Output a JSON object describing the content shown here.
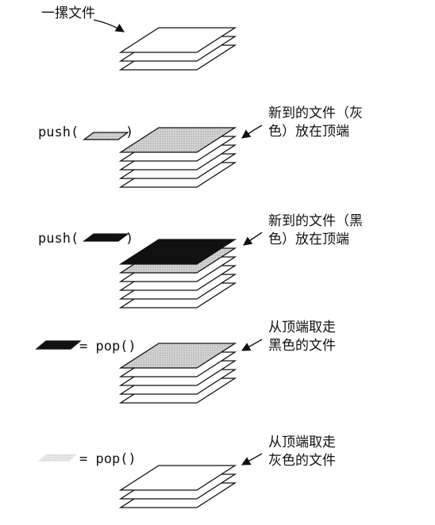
{
  "colors": {
    "white": "#ffffff",
    "gray": "#cccccc",
    "black": "#111111",
    "faint": "#e2e2e2"
  },
  "labels": {
    "stack": "一摞文件",
    "gray_arrive_1": "新到的文件（灰",
    "gray_arrive_2": "色）放在顶端",
    "black_arrive_1": "新到的文件（黑",
    "black_arrive_2": "色）放在顶端",
    "take_black_1": "从顶端取走",
    "take_black_2": "黑色的文件",
    "take_gray_1": "从顶端取走",
    "take_gray_2": "灰色的文件"
  },
  "code": {
    "push_open": "push(",
    "push_close": ")",
    "assign_pop": "= pop()"
  },
  "stacks": [
    {
      "sheets": [
        "white",
        "white",
        "white"
      ]
    },
    {
      "sheets": [
        "white",
        "white",
        "white",
        "white",
        "gray"
      ]
    },
    {
      "sheets": [
        "white",
        "white",
        "white",
        "white",
        "gray",
        "black"
      ]
    },
    {
      "sheets": [
        "white",
        "white",
        "white",
        "white",
        "gray"
      ]
    },
    {
      "sheets": [
        "white",
        "white",
        "white"
      ]
    }
  ]
}
